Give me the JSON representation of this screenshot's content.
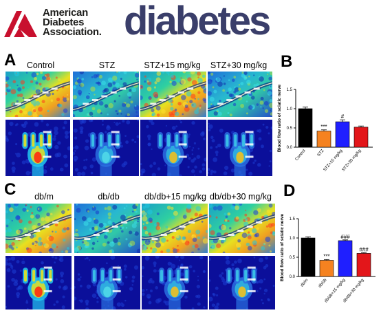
{
  "header": {
    "ada_line1": "American",
    "ada_line2": "Diabetes",
    "ada_line3": "Association.",
    "journal": "diabetes",
    "brand_red": "#c8102e",
    "brand_navy": "#3a3e6a"
  },
  "panels": {
    "A": {
      "label": "A",
      "columns": [
        "Control",
        "STZ",
        "STZ+15 mg/kg",
        "STZ+30 mg/kg"
      ]
    },
    "B": {
      "label": "B"
    },
    "C": {
      "label": "C",
      "columns": [
        "db/m",
        "db/db",
        "db/db+15 mg/kg",
        "db/db+30 mg/kg"
      ]
    },
    "D": {
      "label": "D"
    }
  },
  "chart_data": [
    {
      "type": "bar",
      "panel": "B",
      "categories": [
        "Control",
        "STZ",
        "STZ+15 mg/kg",
        "STZ+30 mg/kg"
      ],
      "values": [
        1.0,
        0.42,
        0.66,
        0.52
      ],
      "errors": [
        0.04,
        0.03,
        0.05,
        0.03
      ],
      "colors": [
        "#000000",
        "#f58220",
        "#1f1fff",
        "#e3161a"
      ],
      "significance": [
        "",
        "***",
        "#",
        ""
      ],
      "ylabel": "Blood flow ratio of sciatic nerve",
      "ylim": [
        0.0,
        1.5
      ],
      "yticks": [
        "0.0",
        "0.5",
        "1.0",
        "1.5"
      ]
    },
    {
      "type": "bar",
      "panel": "D",
      "categories": [
        "db/m",
        "db/db",
        "db/db+15 mg/kg",
        "db/db+30 mg/kg"
      ],
      "values": [
        1.0,
        0.42,
        0.93,
        0.6
      ],
      "errors": [
        0.03,
        0.02,
        0.02,
        0.02
      ],
      "colors": [
        "#000000",
        "#f58220",
        "#1f1fff",
        "#e3161a"
      ],
      "significance": [
        "",
        "***",
        "###",
        "###"
      ],
      "ylabel": "Blood flow ratio of sciatic nerve",
      "ylim": [
        0.0,
        1.5
      ],
      "yticks": [
        "0.0",
        "0.5",
        "1.0",
        "1.5"
      ]
    }
  ]
}
